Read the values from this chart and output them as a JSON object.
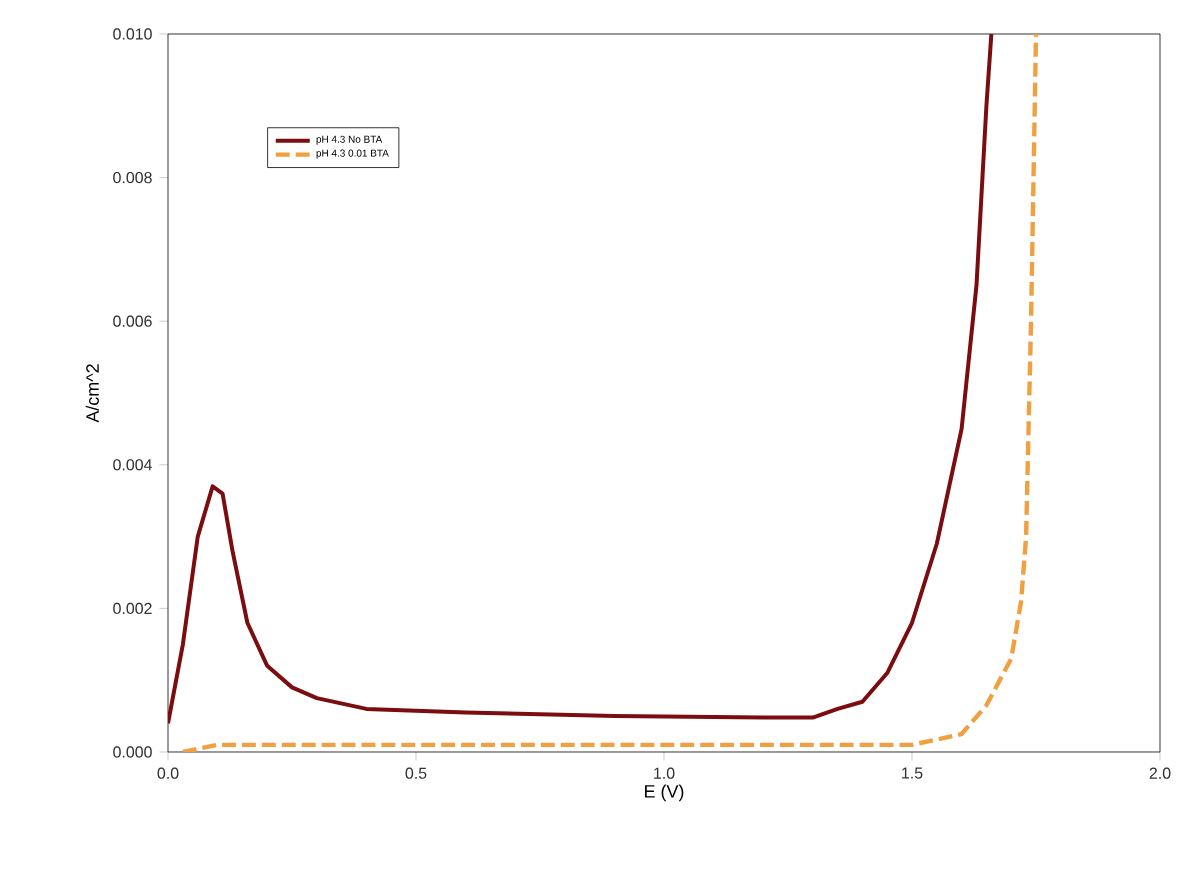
{
  "chart_data": {
    "type": "line",
    "xlabel": "E (V)",
    "ylabel": "A/cm^2",
    "xlim": [
      0,
      2.0
    ],
    "ylim": [
      0,
      0.01
    ],
    "xticks": [
      {
        "value": 0,
        "label": "0.0"
      },
      {
        "value": 0.5,
        "label": "0.5"
      },
      {
        "value": 1.0,
        "label": "1.0"
      },
      {
        "value": 1.5,
        "label": "1.5"
      },
      {
        "value": 2.0,
        "label": "2.0"
      }
    ],
    "yticks": [
      {
        "value": 0,
        "label": "0.000"
      },
      {
        "value": 0.002,
        "label": "0.002"
      },
      {
        "value": 0.004,
        "label": "0.004"
      },
      {
        "value": 0.006,
        "label": "0.006"
      },
      {
        "value": 0.008,
        "label": "0.008"
      },
      {
        "value": 0.01,
        "label": "0.010"
      }
    ],
    "grid": false,
    "legend": "top left",
    "series": [
      {
        "name": "pH 4.3 No BTA",
        "color": "#7b0d10",
        "line_style": "solid",
        "x": [
          0,
          0.03,
          0.06,
          0.09,
          0.11,
          0.13,
          0.16,
          0.2,
          0.25,
          0.3,
          0.4,
          0.6,
          0.9,
          1.2,
          1.3,
          1.35,
          1.4,
          1.45,
          1.5,
          1.55,
          1.6,
          1.63,
          1.65,
          1.66
        ],
        "values": [
          0.0004,
          0.0015,
          0.003,
          0.0037,
          0.0036,
          0.0028,
          0.0018,
          0.0012,
          0.0009,
          0.00075,
          0.0006,
          0.00055,
          0.0005,
          0.00048,
          0.00048,
          0.0006,
          0.0007,
          0.0011,
          0.0018,
          0.0029,
          0.0045,
          0.0065,
          0.009,
          0.01
        ]
      },
      {
        "name": "pH 4.3 0.01 BTA",
        "color": "#f0a040",
        "line_style": "dashed",
        "x": [
          0.03,
          0.1,
          0.2,
          0.5,
          1.0,
          1.3,
          1.5,
          1.6,
          1.65,
          1.7,
          1.72,
          1.73,
          1.74,
          1.75
        ],
        "values": [
          0.0,
          0.0001,
          0.0001,
          0.0001,
          0.0001,
          0.0001,
          0.0001,
          0.00025,
          0.00065,
          0.0013,
          0.0021,
          0.003,
          0.006,
          0.01
        ]
      }
    ]
  }
}
